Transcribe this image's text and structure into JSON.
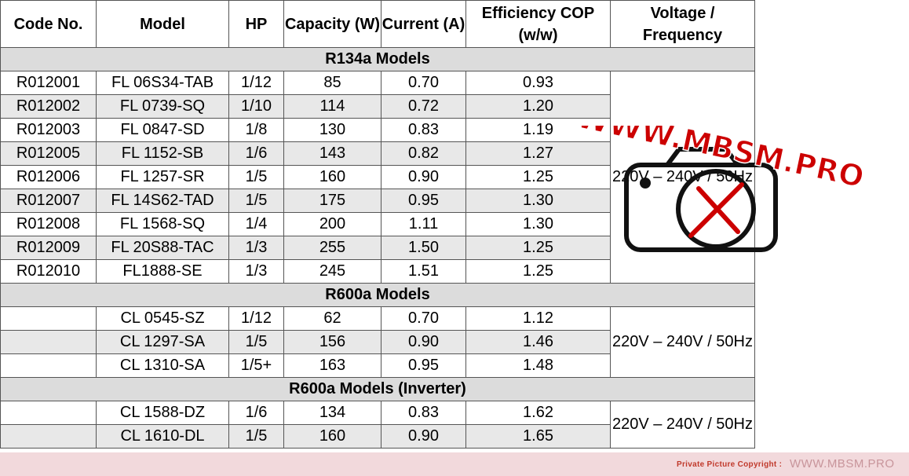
{
  "headers": {
    "code": "Code No.",
    "model": "Model",
    "hp": "HP",
    "capacity": "Capacity (W)",
    "current": "Current (A)",
    "cop": "Efficiency COP (w/w)",
    "voltage": "Voltage / Frequency"
  },
  "groups": [
    {
      "title": "R134a Models",
      "voltage": "220V – 240V / 50Hz",
      "rows": [
        {
          "code": "R012001",
          "model": "FL 06S34-TAB",
          "hp": "1/12",
          "capacity": "85",
          "current": "0.70",
          "cop": "0.93"
        },
        {
          "code": "R012002",
          "model": "FL 0739-SQ",
          "hp": "1/10",
          "capacity": "114",
          "current": "0.72",
          "cop": "1.20"
        },
        {
          "code": "R012003",
          "model": "FL 0847-SD",
          "hp": "1/8",
          "capacity": "130",
          "current": "0.83",
          "cop": "1.19"
        },
        {
          "code": "R012005",
          "model": "FL 1152-SB",
          "hp": "1/6",
          "capacity": "143",
          "current": "0.82",
          "cop": "1.27"
        },
        {
          "code": "R012006",
          "model": "FL 1257-SR",
          "hp": "1/5",
          "capacity": "160",
          "current": "0.90",
          "cop": "1.25"
        },
        {
          "code": "R012007",
          "model": "FL 14S62-TAD",
          "hp": "1/5",
          "capacity": "175",
          "current": "0.95",
          "cop": "1.30"
        },
        {
          "code": "R012008",
          "model": "FL 1568-SQ",
          "hp": "1/4",
          "capacity": "200",
          "current": "1.11",
          "cop": "1.30"
        },
        {
          "code": "R012009",
          "model": "FL 20S88-TAC",
          "hp": "1/3",
          "capacity": "255",
          "current": "1.50",
          "cop": "1.25"
        },
        {
          "code": "R012010",
          "model": "FL1888-SE",
          "hp": "1/3",
          "capacity": "245",
          "current": "1.51",
          "cop": "1.25"
        }
      ]
    },
    {
      "title": "R600a Models",
      "voltage": "220V – 240V / 50Hz",
      "rows": [
        {
          "code": "",
          "model": "CL 0545-SZ",
          "hp": "1/12",
          "capacity": "62",
          "current": "0.70",
          "cop": "1.12"
        },
        {
          "code": "",
          "model": "CL 1297-SA",
          "hp": "1/5",
          "capacity": "156",
          "current": "0.90",
          "cop": "1.46"
        },
        {
          "code": "",
          "model": "CL 1310-SA",
          "hp": "1/5+",
          "capacity": "163",
          "current": "0.95",
          "cop": "1.48"
        }
      ]
    },
    {
      "title": "R600a Models (Inverter)",
      "voltage": "220V – 240V / 50Hz",
      "rows": [
        {
          "code": "",
          "model": "CL 1588-DZ",
          "hp": "1/6",
          "capacity": "134",
          "current": "0.83",
          "cop": "1.62"
        },
        {
          "code": "",
          "model": "CL 1610-DL",
          "hp": "1/5",
          "capacity": "160",
          "current": "0.90",
          "cop": "1.65"
        }
      ]
    }
  ],
  "watermark": {
    "text": "WWW.MBSM.PRO",
    "icon": "camera-wrench-icon",
    "color": "#cc0000"
  },
  "footer": {
    "copyright": "Private Picture Copyright :",
    "brand": "WWW.MBSM.PRO",
    "background": "#f2d9dc"
  }
}
